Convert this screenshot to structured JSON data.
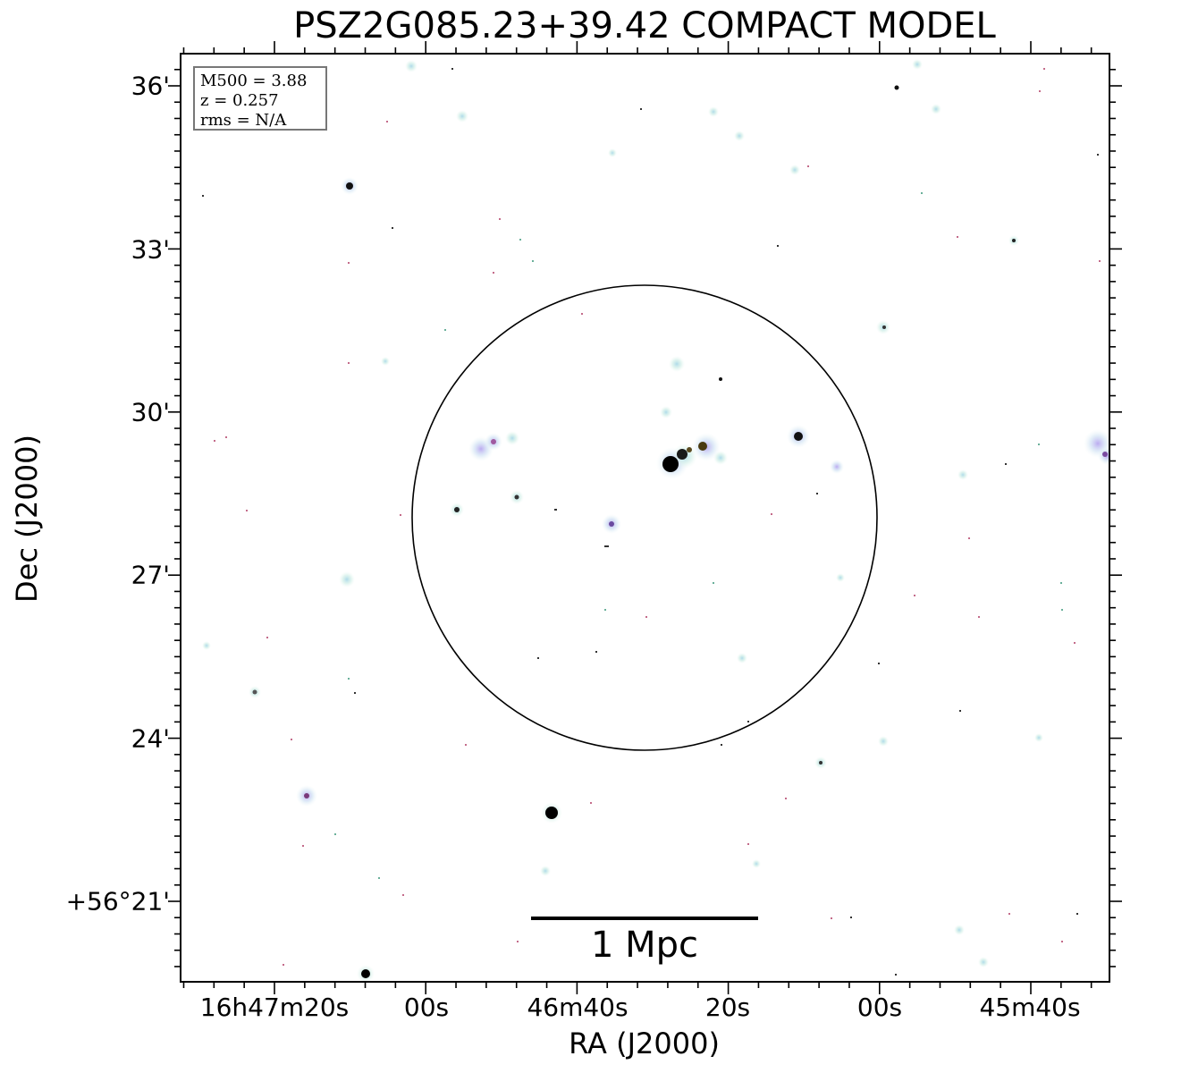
{
  "title": "PSZ2G085.23+39.42 COMPACT MODEL",
  "axes": {
    "xlabel": "RA (J2000)",
    "ylabel": "Dec (J2000)",
    "xticks": [
      "16h47m20s",
      "00s",
      "46m40s",
      "20s",
      "00s",
      "45m40s"
    ],
    "yticks": [
      "36'",
      "33'",
      "30'",
      "27'",
      "24'",
      "+56°21'"
    ]
  },
  "legend": {
    "m500": "M500 = 3.88",
    "z": "z = 0.257",
    "rms": "rms = N/A"
  },
  "scalebar": {
    "label": "1 Mpc"
  },
  "colors": {
    "halo": "#cfeee6",
    "halo_purple": "#c9b8ee",
    "core": "#000000",
    "ring": "#000000",
    "frame": "#000000"
  }
}
